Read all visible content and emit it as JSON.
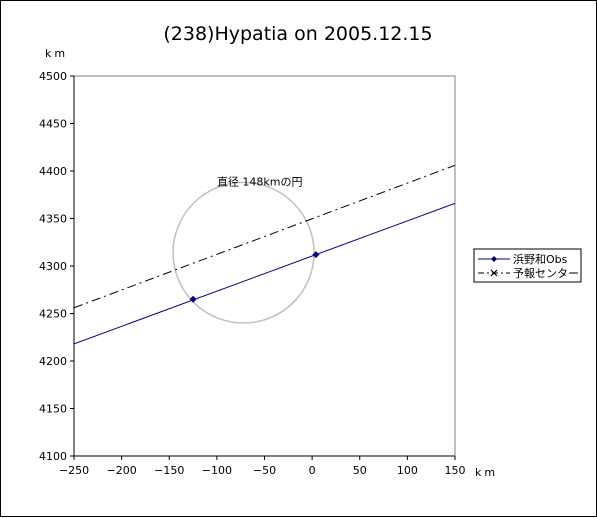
{
  "chart_data": {
    "type": "scatter",
    "title": "(238)Hypatia on 2005.12.15",
    "xlabel": "km",
    "ylabel": "km",
    "xlim": [
      -250,
      150
    ],
    "ylim": [
      4100,
      4500
    ],
    "xticks": [
      -250,
      -200,
      -150,
      -100,
      -50,
      0,
      50,
      100,
      150
    ],
    "yticks": [
      4100,
      4150,
      4200,
      4250,
      4300,
      4350,
      4400,
      4450,
      4500
    ],
    "grid": false,
    "legend_position": "right",
    "annotation": "直径 148kmの円",
    "annotation_at": [
      -55,
      4385
    ],
    "circle": {
      "center": [
        -72,
        4314
      ],
      "radius": 74,
      "color": "#c0c0c0"
    },
    "series": [
      {
        "name": "浜野和Obs",
        "color": "#000080",
        "line_style": "solid",
        "marker": "diamond",
        "line": [
          [
            -250,
            4218
          ],
          [
            150,
            4366
          ]
        ],
        "points": [
          [
            -125,
            4265
          ],
          [
            4,
            4312
          ]
        ]
      },
      {
        "name": "予報センター",
        "color": "#000000",
        "line_style": "dashdot",
        "marker": "x",
        "line": [
          [
            -250,
            4256
          ],
          [
            150,
            4406
          ]
        ],
        "points": []
      }
    ]
  }
}
